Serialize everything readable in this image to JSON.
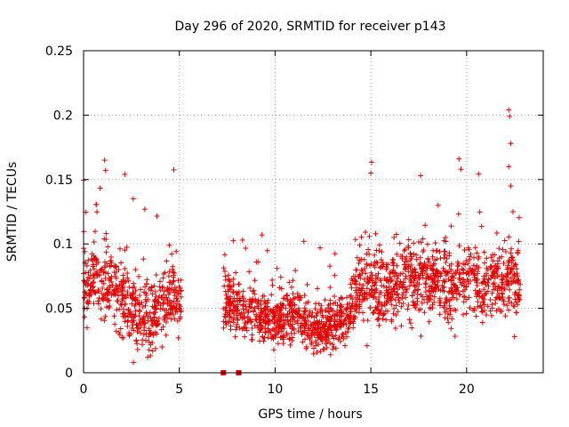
{
  "chart_data": {
    "type": "scatter",
    "title": "Day 296 of 2020, SRMTID for receiver p143",
    "xlabel": "GPS time / hours",
    "ylabel": "SRMTID / TECUs",
    "xlim": [
      0,
      24
    ],
    "ylim": [
      0,
      0.25
    ],
    "grid": true,
    "marker": "+",
    "color": "#e60000",
    "xticks": [
      0,
      5,
      10,
      15,
      20
    ],
    "xtick_labels": [
      "0",
      "5",
      "10",
      "15",
      "20"
    ],
    "yticks": [
      0,
      0.05,
      0.1,
      0.15,
      0.2,
      0.25
    ],
    "ytick_labels": [
      "0",
      "0.05",
      "0.1",
      "0.15",
      "0.2",
      "0.25"
    ],
    "series": [
      {
        "name": "SRMTID p143",
        "segments": [
          {
            "x_range": [
              0.0,
              5.1
            ],
            "profile_hours": [
              0.0,
              0.5,
              1.0,
              1.5,
              2.0,
              2.5,
              3.0,
              3.5,
              4.0,
              4.5,
              5.0
            ],
            "profile_mean": [
              0.065,
              0.075,
              0.07,
              0.065,
              0.06,
              0.05,
              0.045,
              0.04,
              0.05,
              0.06,
              0.055
            ],
            "spread": 0.025,
            "n": 520
          },
          {
            "x_range": [
              7.3,
              14.0
            ],
            "profile_hours": [
              7.3,
              8.0,
              9.0,
              10.0,
              11.0,
              12.0,
              13.0,
              14.0
            ],
            "profile_mean": [
              0.055,
              0.05,
              0.045,
              0.04,
              0.045,
              0.035,
              0.035,
              0.05
            ],
            "spread": 0.018,
            "n": 720
          },
          {
            "x_range": [
              14.0,
              22.8
            ],
            "profile_hours": [
              14.0,
              15.0,
              16.0,
              17.0,
              18.0,
              19.0,
              20.0,
              21.0,
              22.0,
              22.8
            ],
            "profile_mean": [
              0.06,
              0.07,
              0.065,
              0.075,
              0.07,
              0.07,
              0.07,
              0.065,
              0.075,
              0.07
            ],
            "spread": 0.025,
            "n": 900
          }
        ],
        "peaks": [
          {
            "x": 1.1,
            "y": 0.165
          },
          {
            "x": 1.15,
            "y": 0.157
          },
          {
            "x": 2.15,
            "y": 0.154
          },
          {
            "x": 3.2,
            "y": 0.127
          },
          {
            "x": 2.6,
            "y": 0.008
          },
          {
            "x": 15.0,
            "y": 0.155
          },
          {
            "x": 17.6,
            "y": 0.153
          },
          {
            "x": 19.6,
            "y": 0.166
          },
          {
            "x": 19.7,
            "y": 0.158
          },
          {
            "x": 22.2,
            "y": 0.204
          },
          {
            "x": 22.25,
            "y": 0.199
          },
          {
            "x": 22.3,
            "y": 0.178
          },
          {
            "x": 22.2,
            "y": 0.16
          },
          {
            "x": 22.3,
            "y": 0.145
          },
          {
            "x": 8.3,
            "y": 0.103
          },
          {
            "x": 11.5,
            "y": 0.102
          },
          {
            "x": 22.5,
            "y": 0.028
          },
          {
            "x": 14.8,
            "y": 0.021
          }
        ],
        "zero_markers": [
          {
            "x": 7.3,
            "y": 0
          },
          {
            "x": 8.1,
            "y": 0
          }
        ]
      }
    ]
  }
}
